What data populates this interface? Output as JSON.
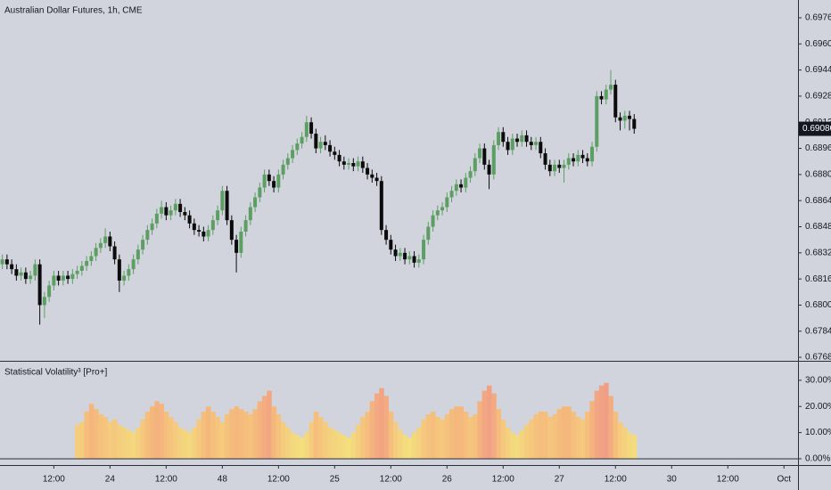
{
  "chart_data": [
    {
      "type": "candlestick",
      "title": "Australian Dollar Futures, 1h, CME",
      "up_color": "#5d9e63",
      "down_color": "#0b0b0b",
      "x": [
        1,
        2,
        3,
        4,
        5,
        6,
        7,
        8,
        9,
        10,
        11,
        12,
        13,
        14,
        15,
        16,
        17,
        18,
        19,
        20,
        21,
        22,
        23,
        24,
        25,
        26,
        27,
        28,
        29,
        30,
        31,
        32,
        33,
        34,
        35,
        36,
        37,
        38,
        39,
        40,
        41,
        42,
        43,
        44,
        45,
        46,
        47,
        48,
        49,
        50,
        51,
        52,
        53,
        54,
        55,
        56,
        57,
        58,
        59,
        60,
        61,
        62,
        63,
        64,
        65,
        66,
        67,
        68,
        69,
        70,
        71,
        72,
        73,
        74,
        75,
        76,
        77,
        78,
        79,
        80,
        81,
        82,
        83,
        84,
        85,
        86,
        87,
        88,
        89,
        90,
        91,
        92,
        93,
        94,
        95,
        96,
        97,
        98,
        99,
        100,
        101,
        102,
        103,
        104,
        105,
        106,
        107,
        108,
        109,
        110,
        111,
        112,
        113,
        114,
        115,
        116,
        117,
        118,
        119,
        120,
        121,
        122,
        123,
        124,
        125,
        126,
        127,
        128,
        129,
        130,
        131,
        132,
        133,
        134,
        135,
        136
      ],
      "open": [
        0.6825,
        0.6828,
        0.6825,
        0.6822,
        0.6818,
        0.682,
        0.6816,
        0.6818,
        0.6825,
        0.68,
        0.6805,
        0.6812,
        0.6818,
        0.6815,
        0.6818,
        0.6816,
        0.6819,
        0.6821,
        0.6824,
        0.6827,
        0.683,
        0.6835,
        0.6838,
        0.6842,
        0.6836,
        0.6828,
        0.6815,
        0.6818,
        0.6822,
        0.6828,
        0.6834,
        0.684,
        0.6846,
        0.685,
        0.6856,
        0.686,
        0.6855,
        0.6858,
        0.6862,
        0.6857,
        0.6855,
        0.685,
        0.6846,
        0.6845,
        0.6842,
        0.6846,
        0.6852,
        0.6858,
        0.687,
        0.6852,
        0.684,
        0.6832,
        0.6845,
        0.6852,
        0.686,
        0.6866,
        0.6872,
        0.688,
        0.6876,
        0.6872,
        0.688,
        0.6886,
        0.689,
        0.6895,
        0.6899,
        0.6903,
        0.6912,
        0.6905,
        0.6896,
        0.69,
        0.6898,
        0.6894,
        0.6892,
        0.6888,
        0.6886,
        0.6887,
        0.6885,
        0.6888,
        0.6884,
        0.688,
        0.6878,
        0.6876,
        0.6846,
        0.684,
        0.6834,
        0.683,
        0.6832,
        0.6828,
        0.683,
        0.6826,
        0.6828,
        0.684,
        0.6848,
        0.6855,
        0.6858,
        0.686,
        0.6866,
        0.687,
        0.6874,
        0.6872,
        0.6878,
        0.6882,
        0.689,
        0.6896,
        0.6886,
        0.688,
        0.6898,
        0.6906,
        0.69,
        0.6895,
        0.6902,
        0.69,
        0.6904,
        0.69,
        0.6898,
        0.69,
        0.6893,
        0.6886,
        0.6882,
        0.6886,
        0.6884,
        0.6886,
        0.689,
        0.6888,
        0.6892,
        0.689,
        0.6888,
        0.6897,
        0.6928,
        0.6926,
        0.6932,
        0.6935,
        0.6915,
        0.6913,
        0.6916,
        0.6914
      ],
      "high": [
        0.6831,
        0.6831,
        0.6828,
        0.6825,
        0.6823,
        0.6823,
        0.6821,
        0.6828,
        0.6828,
        0.6808,
        0.6815,
        0.6821,
        0.6821,
        0.6821,
        0.6821,
        0.6822,
        0.6824,
        0.6827,
        0.683,
        0.6833,
        0.6838,
        0.6841,
        0.6847,
        0.6845,
        0.6839,
        0.6831,
        0.6821,
        0.6825,
        0.6831,
        0.6837,
        0.6843,
        0.6849,
        0.6853,
        0.6859,
        0.6864,
        0.6863,
        0.6861,
        0.6865,
        0.6865,
        0.686,
        0.6858,
        0.6853,
        0.6849,
        0.6848,
        0.6849,
        0.6855,
        0.6861,
        0.6873,
        0.6873,
        0.6855,
        0.6843,
        0.6848,
        0.6855,
        0.6863,
        0.6869,
        0.6875,
        0.6883,
        0.6883,
        0.6879,
        0.6883,
        0.6889,
        0.6893,
        0.6898,
        0.6902,
        0.6906,
        0.6916,
        0.6915,
        0.6908,
        0.6903,
        0.6904,
        0.6901,
        0.6897,
        0.6895,
        0.6891,
        0.689,
        0.689,
        0.6891,
        0.6891,
        0.6887,
        0.6883,
        0.6881,
        0.6879,
        0.6849,
        0.6843,
        0.6837,
        0.6835,
        0.6835,
        0.6833,
        0.6833,
        0.6831,
        0.6843,
        0.6851,
        0.6858,
        0.6861,
        0.6863,
        0.6869,
        0.6873,
        0.6877,
        0.6877,
        0.6881,
        0.6885,
        0.6893,
        0.6899,
        0.6899,
        0.6889,
        0.6901,
        0.6909,
        0.6909,
        0.6903,
        0.6905,
        0.6905,
        0.6907,
        0.6907,
        0.6903,
        0.6903,
        0.6903,
        0.6896,
        0.6889,
        0.6889,
        0.6889,
        0.6889,
        0.6893,
        0.6893,
        0.6895,
        0.6895,
        0.6893,
        0.69,
        0.6931,
        0.6931,
        0.6935,
        0.6944,
        0.6938,
        0.6918,
        0.6919,
        0.6919,
        0.6917
      ],
      "low": [
        0.6822,
        0.6822,
        0.6819,
        0.6815,
        0.6815,
        0.6813,
        0.6813,
        0.6815,
        0.6788,
        0.6792,
        0.6802,
        0.6809,
        0.6812,
        0.6812,
        0.6813,
        0.6813,
        0.6816,
        0.6818,
        0.6821,
        0.6824,
        0.6827,
        0.6832,
        0.6835,
        0.6833,
        0.6825,
        0.6808,
        0.6812,
        0.6815,
        0.6819,
        0.6825,
        0.6831,
        0.6837,
        0.6843,
        0.6847,
        0.6853,
        0.6852,
        0.6852,
        0.6855,
        0.6854,
        0.6852,
        0.6847,
        0.6843,
        0.6842,
        0.6839,
        0.6839,
        0.6843,
        0.6849,
        0.6855,
        0.6849,
        0.6837,
        0.682,
        0.6829,
        0.6842,
        0.6849,
        0.6857,
        0.6863,
        0.6869,
        0.6873,
        0.6869,
        0.6869,
        0.6877,
        0.6883,
        0.6887,
        0.6892,
        0.6896,
        0.69,
        0.6902,
        0.6893,
        0.6893,
        0.6895,
        0.6891,
        0.6889,
        0.6885,
        0.6883,
        0.6883,
        0.6882,
        0.6882,
        0.6881,
        0.6877,
        0.6875,
        0.6873,
        0.6843,
        0.6837,
        0.6831,
        0.6827,
        0.6827,
        0.6825,
        0.6825,
        0.6823,
        0.6823,
        0.6825,
        0.6837,
        0.6845,
        0.6852,
        0.6855,
        0.6857,
        0.6863,
        0.6867,
        0.6869,
        0.6869,
        0.6875,
        0.6879,
        0.6887,
        0.6883,
        0.6871,
        0.6877,
        0.6895,
        0.6897,
        0.6892,
        0.6892,
        0.6897,
        0.6897,
        0.6897,
        0.6895,
        0.6895,
        0.689,
        0.6883,
        0.6879,
        0.6879,
        0.6881,
        0.6875,
        0.6883,
        0.6885,
        0.6885,
        0.6887,
        0.6885,
        0.6885,
        0.6894,
        0.6923,
        0.6923,
        0.6929,
        0.6912,
        0.6907,
        0.6908,
        0.6907,
        0.6905
      ],
      "close": [
        0.6828,
        0.6825,
        0.6822,
        0.6818,
        0.682,
        0.6816,
        0.6818,
        0.6825,
        0.68,
        0.6805,
        0.6812,
        0.6818,
        0.6815,
        0.6818,
        0.6816,
        0.6819,
        0.6821,
        0.6824,
        0.6827,
        0.683,
        0.6835,
        0.6838,
        0.6842,
        0.6836,
        0.6828,
        0.6815,
        0.6818,
        0.6822,
        0.6828,
        0.6834,
        0.684,
        0.6846,
        0.685,
        0.6856,
        0.686,
        0.6855,
        0.6858,
        0.6862,
        0.6857,
        0.6855,
        0.685,
        0.6846,
        0.6845,
        0.6842,
        0.6846,
        0.6852,
        0.6858,
        0.687,
        0.6852,
        0.684,
        0.6832,
        0.6845,
        0.6852,
        0.686,
        0.6866,
        0.6872,
        0.688,
        0.6876,
        0.6872,
        0.688,
        0.6886,
        0.689,
        0.6895,
        0.6899,
        0.6903,
        0.6912,
        0.6905,
        0.6896,
        0.69,
        0.6898,
        0.6894,
        0.6892,
        0.6888,
        0.6886,
        0.6887,
        0.6885,
        0.6888,
        0.6884,
        0.688,
        0.6878,
        0.6876,
        0.6846,
        0.684,
        0.6834,
        0.683,
        0.6832,
        0.6828,
        0.683,
        0.6826,
        0.6828,
        0.684,
        0.6848,
        0.6855,
        0.6858,
        0.686,
        0.6866,
        0.687,
        0.6874,
        0.6872,
        0.6878,
        0.6882,
        0.689,
        0.6896,
        0.6886,
        0.688,
        0.6898,
        0.6906,
        0.69,
        0.6895,
        0.6902,
        0.69,
        0.6904,
        0.69,
        0.6898,
        0.69,
        0.6893,
        0.6886,
        0.6882,
        0.6886,
        0.6884,
        0.6886,
        0.689,
        0.6888,
        0.6892,
        0.689,
        0.6888,
        0.6897,
        0.6928,
        0.6926,
        0.6932,
        0.6935,
        0.6915,
        0.6913,
        0.6916,
        0.6914,
        0.6908
      ],
      "last_price": {
        "value": 0.6908,
        "label": "0.69080"
      },
      "xlim": [
        0.5,
        171
      ],
      "xticks": [
        {
          "value": 12,
          "label": "12:00"
        },
        24,
        {
          "value": 36,
          "label": "12:00"
        },
        48,
        {
          "value": 60,
          "label": "12:00"
        },
        {
          "value": 72,
          "label": "25"
        },
        {
          "value": 84,
          "label": "12:00"
        },
        {
          "value": 96,
          "label": "26"
        },
        {
          "value": 108,
          "label": "12:00"
        },
        {
          "value": 120,
          "label": "27"
        },
        {
          "value": 132,
          "label": "12:00"
        },
        {
          "value": 144,
          "label": "30"
        },
        {
          "value": 156,
          "label": "12:00"
        },
        {
          "value": 168,
          "label": "Oct"
        }
      ],
      "ylim": [
        0.67664,
        0.69869
      ],
      "yticks": [
        {
          "value": 0.6976,
          "label": "0.69760"
        },
        {
          "value": 0.696,
          "label": "0.69600"
        },
        {
          "value": 0.6944,
          "label": "0.69440"
        },
        {
          "value": 0.6928,
          "label": "0.69280"
        },
        {
          "value": 0.6912,
          "label": "0.69120"
        },
        {
          "value": 0.6896,
          "label": "0.68960"
        },
        {
          "value": 0.688,
          "label": "0.68800"
        },
        {
          "value": 0.6864,
          "label": "0.68640"
        },
        {
          "value": 0.6848,
          "label": "0.68480"
        },
        {
          "value": 0.6832,
          "label": "0.68320"
        },
        {
          "value": 0.6816,
          "label": "0.68160"
        },
        {
          "value": 0.68,
          "label": "0.68000"
        },
        {
          "value": 0.6784,
          "label": "0.67840"
        },
        {
          "value": 0.6768,
          "label": "0.67680"
        }
      ]
    },
    {
      "type": "bar",
      "title": "Statistical Volatility³ [Pro+]",
      "colors": [
        "#f4e67f",
        "#f5b77c",
        "#ee8c8c"
      ],
      "x": [
        17,
        18,
        19,
        20,
        21,
        22,
        23,
        24,
        25,
        26,
        27,
        28,
        29,
        30,
        31,
        32,
        33,
        34,
        35,
        36,
        37,
        38,
        39,
        40,
        41,
        42,
        43,
        44,
        45,
        46,
        47,
        48,
        49,
        50,
        51,
        52,
        53,
        54,
        55,
        56,
        57,
        58,
        59,
        60,
        61,
        62,
        63,
        64,
        65,
        66,
        67,
        68,
        69,
        70,
        71,
        72,
        73,
        74,
        75,
        76,
        77,
        78,
        79,
        80,
        81,
        82,
        83,
        84,
        85,
        86,
        87,
        88,
        89,
        90,
        91,
        92,
        93,
        94,
        95,
        96,
        97,
        98,
        99,
        100,
        101,
        102,
        103,
        104,
        105,
        106,
        107,
        108,
        109,
        110,
        111,
        112,
        113,
        114,
        115,
        116,
        117,
        118,
        119,
        120,
        121,
        122,
        123,
        124,
        125,
        126,
        127,
        128,
        129,
        130,
        131,
        132,
        133,
        134,
        135,
        136
      ],
      "values": [
        13,
        14,
        18,
        21,
        19,
        17,
        16,
        14,
        15,
        13,
        12,
        11,
        10,
        12,
        15,
        18,
        20,
        22,
        21,
        18,
        16,
        14,
        12,
        11,
        10,
        12,
        15,
        18,
        20,
        18,
        16,
        14,
        17,
        19,
        20,
        19,
        18,
        17,
        19,
        22,
        24,
        26,
        20,
        17,
        14,
        12,
        10,
        9,
        8,
        10,
        14,
        18,
        16,
        14,
        12,
        11,
        10,
        9,
        8,
        10,
        13,
        16,
        18,
        22,
        25,
        27,
        24,
        18,
        14,
        11,
        9,
        8,
        10,
        12,
        15,
        17,
        18,
        16,
        15,
        17,
        19,
        20,
        20,
        18,
        16,
        17,
        22,
        26,
        28,
        25,
        19,
        15,
        12,
        10,
        9,
        11,
        13,
        15,
        17,
        18,
        18,
        16,
        17,
        19,
        20,
        20,
        18,
        16,
        15,
        18,
        22,
        26,
        28,
        29,
        24,
        18,
        14,
        12,
        10,
        9
      ],
      "ylim": [
        -2.4,
        37.1
      ],
      "yticks": [
        {
          "value": 0,
          "label": "0.00%"
        },
        {
          "value": 10,
          "label": "10.00%"
        },
        {
          "value": 20,
          "label": "20.00%"
        },
        {
          "value": 30,
          "label": "30.00%"
        }
      ]
    }
  ]
}
